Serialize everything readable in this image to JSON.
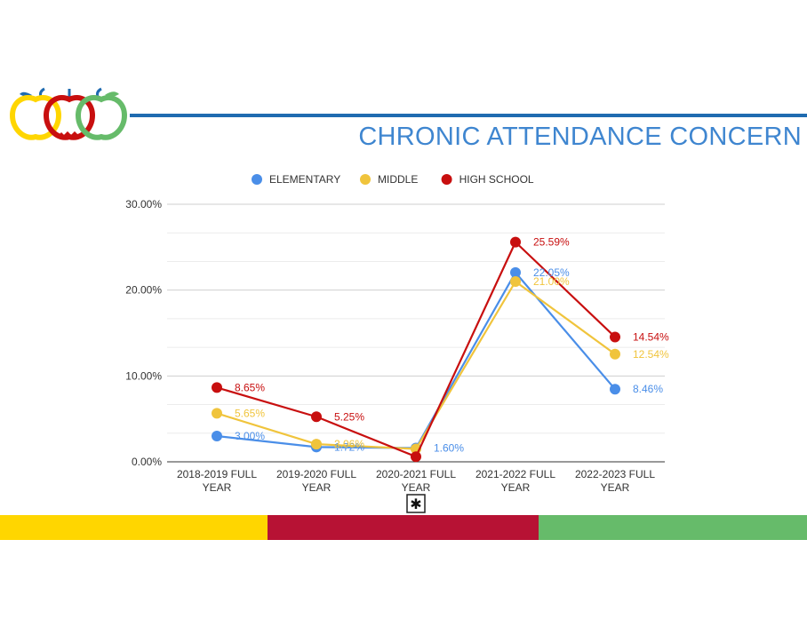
{
  "slide": {
    "title": "CHRONIC ATTENDANCE CONCERN",
    "bottom_bar_colors": [
      "#ffd600",
      "#b71234",
      "#66bb6a"
    ]
  },
  "chart_data": {
    "type": "line",
    "title": "",
    "xlabel": "",
    "ylabel": "",
    "categories": [
      [
        "2018-2019 FULL",
        "YEAR"
      ],
      [
        "2019-2020 FULL",
        "YEAR"
      ],
      [
        "2020-2021 FULL",
        "YEAR"
      ],
      [
        "2021-2022 FULL",
        "YEAR"
      ],
      [
        "2022-2023 FULL",
        "YEAR"
      ]
    ],
    "ylim": [
      0,
      30
    ],
    "yticks": [
      0,
      10,
      20,
      30
    ],
    "ytick_labels": [
      "0.00%",
      "10.00%",
      "20.00%",
      "30.00%"
    ],
    "grid": true,
    "legend_position": "top",
    "annotation": "✱",
    "annotation_category_index": 2,
    "series": [
      {
        "name": "ELEMENTARY",
        "color": "#4a8ee8",
        "values": [
          3.0,
          1.72,
          1.6,
          22.05,
          8.46
        ],
        "labels": [
          "3.00%",
          "1.72%",
          "1.60%",
          "22.05%",
          "8.46%"
        ]
      },
      {
        "name": "MIDDLE",
        "color": "#f0c43c",
        "values": [
          5.65,
          2.06,
          1.5,
          21.0,
          12.54
        ],
        "labels": [
          "5.65%",
          "2.06%",
          "",
          "21.00%",
          "12.54%"
        ]
      },
      {
        "name": "HIGH SCHOOL",
        "color": "#c80f0f",
        "values": [
          8.65,
          5.25,
          0.6,
          25.59,
          14.54
        ],
        "labels": [
          "8.65%",
          "5.25%",
          "",
          "25.59%",
          "14.54%"
        ]
      }
    ]
  }
}
